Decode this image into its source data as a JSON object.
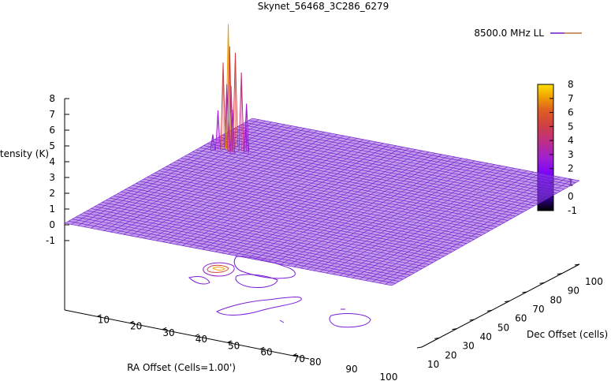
{
  "chart_data": {
    "type": "surface3d",
    "title": "Skynet_56468_3C286_6279",
    "legend": {
      "label": "8500.0 MHz LL",
      "placement": "top-right",
      "color": "#6a1fc0"
    },
    "zlabel": "Intensity (K)",
    "xlabel": "RA Offset (Cells=1.00')",
    "ylabel": "Dec Offset (cells)",
    "xlim": [
      0,
      100
    ],
    "ylim": [
      0,
      100
    ],
    "zlim": [
      -1,
      8
    ],
    "x_ticks": [
      "10",
      "20",
      "30",
      "40",
      "50",
      "60",
      "70",
      "80",
      "90",
      "100"
    ],
    "y_ticks": [
      "10",
      "20",
      "30",
      "40",
      "50",
      "60",
      "70",
      "80",
      "90",
      "100"
    ],
    "z_ticks": [
      "8",
      "7",
      "6",
      "5",
      "4",
      "3",
      "2",
      "1",
      "0",
      "-1"
    ],
    "colorbar_ticks": [
      "8",
      "7",
      "6",
      "5",
      "4",
      "3",
      "2",
      "1",
      "0",
      "-1"
    ],
    "colorbar_range": [
      -1,
      8
    ],
    "baseline_level": 0,
    "peak": {
      "x": 6,
      "y": 72,
      "value": 7.9
    },
    "grid_lines": 50,
    "colormap": [
      "#000000",
      "#3a00a8",
      "#7a00ff",
      "#a020d0",
      "#c03080",
      "#d04040",
      "#e06020",
      "#f0a000",
      "#ffe000"
    ]
  }
}
